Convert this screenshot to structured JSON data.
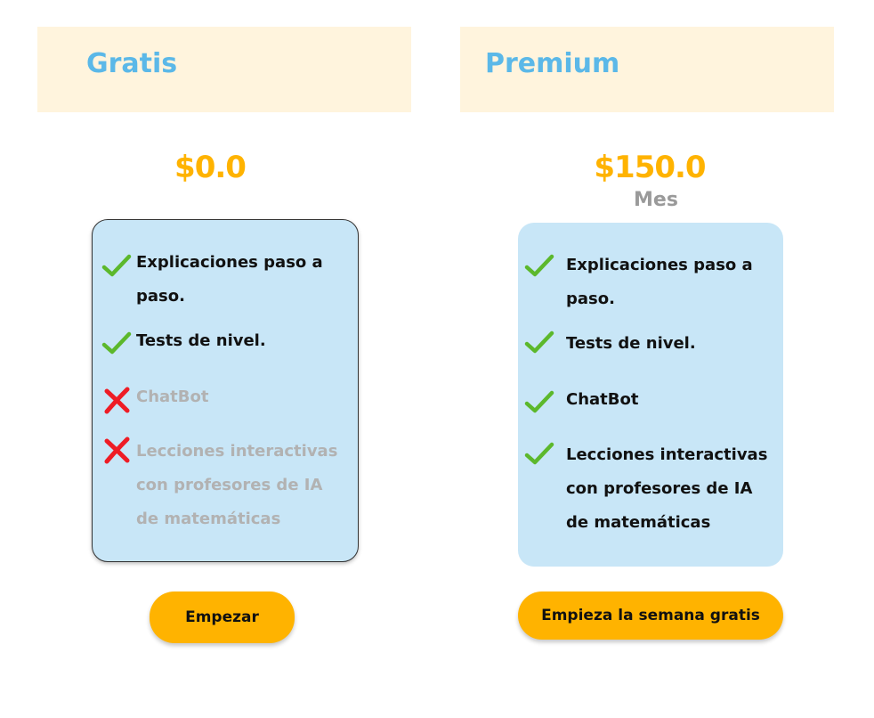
{
  "plans": {
    "free": {
      "name": "Gratis",
      "price": "$0.0",
      "features": [
        {
          "label": "Explicaciones paso a paso.",
          "included": true
        },
        {
          "label": "Tests de nivel.",
          "included": true
        },
        {
          "label": "ChatBot",
          "included": false
        },
        {
          "label": "Lecciones interactivas con profesores de IA de matemáticas",
          "included": false
        }
      ],
      "cta_label": "Empezar"
    },
    "premium": {
      "name": "Premium",
      "price": "$150.0",
      "period": "Mes",
      "features": [
        {
          "label": "Explicaciones paso a paso.",
          "included": true
        },
        {
          "label": "Tests de nivel.",
          "included": true
        },
        {
          "label": "ChatBot",
          "included": true
        },
        {
          "label": "Lecciones interactivas con profesores de IA de matemáticas",
          "included": true
        }
      ],
      "cta_label": "Empieza la semana gratis"
    }
  },
  "colors": {
    "header_bg": "#fff4dd",
    "plan_name": "#5bb8e8",
    "price": "#ffb300",
    "card_bg": "#c8e6f7",
    "check": "#5cb82c",
    "cross": "#ee1c25",
    "disabled_text": "#b2b2b2",
    "button": "#ffb300"
  },
  "icons": {
    "included": "check-icon",
    "excluded": "cross-icon"
  }
}
